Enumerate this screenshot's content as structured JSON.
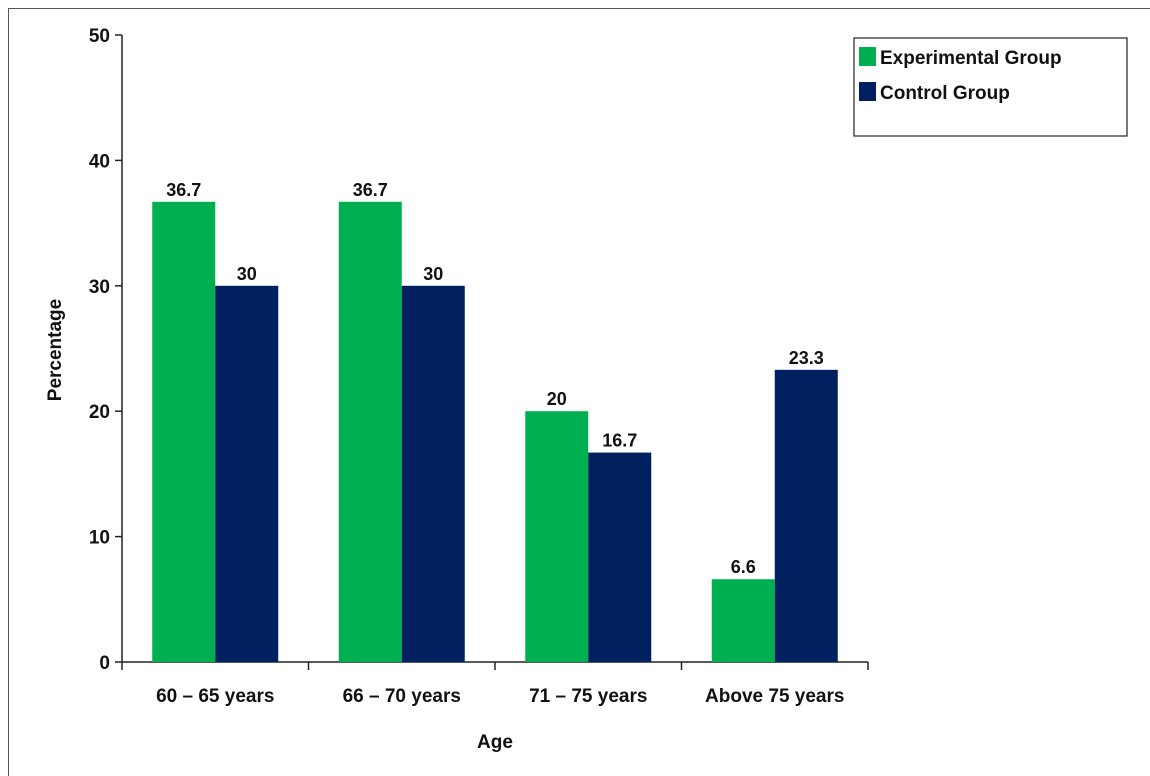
{
  "chart_data": {
    "type": "bar",
    "title": "",
    "xlabel": "Age",
    "ylabel": "Percentage",
    "ylim": [
      0,
      50
    ],
    "yticks": [
      0,
      10,
      20,
      30,
      40,
      50
    ],
    "categories": [
      "60 – 65 years",
      "66 – 70 years",
      "71 – 75 years",
      "Above 75 years"
    ],
    "series": [
      {
        "name": "Experimental Group",
        "color": "#00b050",
        "values": [
          36.7,
          36.7,
          20,
          6.6
        ],
        "labels": [
          "36.7",
          "36.7",
          "20",
          "6.6"
        ]
      },
      {
        "name": "Control Group",
        "color": "#002060",
        "values": [
          30,
          30,
          16.7,
          23.3
        ],
        "labels": [
          "30",
          "30",
          "16.7",
          "23.3"
        ]
      }
    ],
    "legend": "top-right",
    "grid": false
  }
}
